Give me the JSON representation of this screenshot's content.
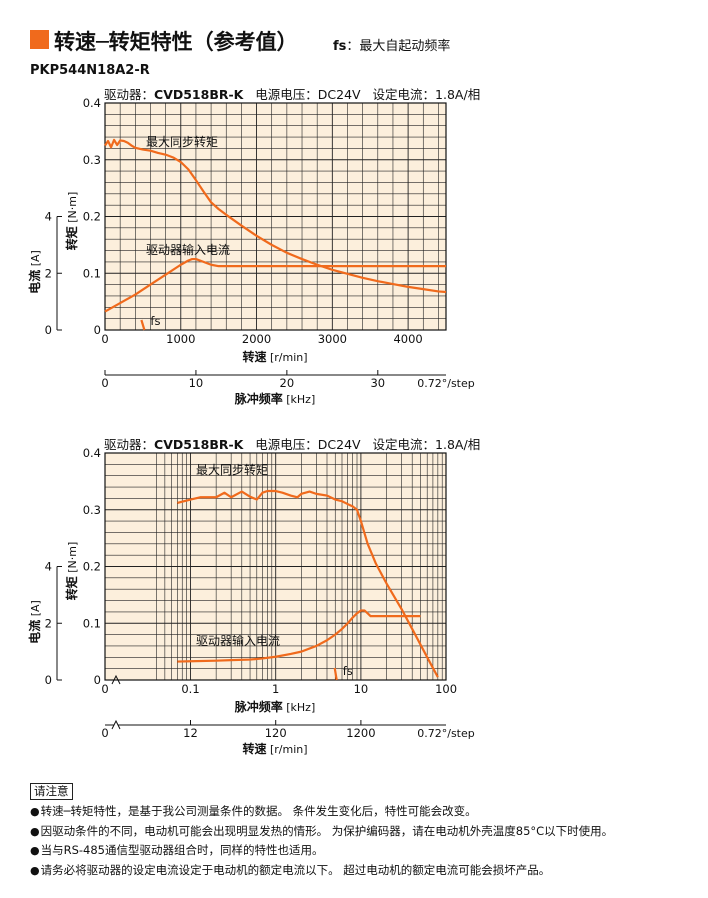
{
  "header": {
    "title": "转速─转矩特性（参考值）",
    "subtitle_fs": "fs",
    "subtitle_rest": "：最大自起动频率",
    "model": "PKP544N18A2-R"
  },
  "colors": {
    "accent": "#f06a1c",
    "curve": "#f06a1c",
    "plot_background": "#fcefdc",
    "grid": "#222222"
  },
  "conditions": {
    "driver_label": "驱动器：",
    "driver_value": "CVD518BR-K",
    "voltage_label": "电源电压：",
    "voltage_value": "DC24V",
    "current_label": "设定电流：",
    "current_value": "1.8A/相"
  },
  "chart_data": [
    {
      "type": "line",
      "x_scale": "linear",
      "xlabel": "转速",
      "xlabel_unit": "[r/min]",
      "xlim": [
        0,
        4500
      ],
      "x_ticks": [
        0,
        1000,
        2000,
        3000,
        4000
      ],
      "x_tick_labels": [
        "0",
        "1000",
        "2000",
        "3000",
        "4000"
      ],
      "ylabel": "转矩",
      "ylabel_unit": "[N·m]",
      "ylim": [
        0,
        0.4
      ],
      "y_ticks": [
        0,
        0.1,
        0.2,
        0.3,
        0.4
      ],
      "y_tick_labels": [
        "0",
        "0.1",
        "0.2",
        "0.3",
        "0.4"
      ],
      "y2label": "电流",
      "y2label_unit": "[A]",
      "y2lim": [
        0,
        8
      ],
      "y2_ticks": [
        0,
        2,
        4
      ],
      "y2_tick_labels": [
        "0",
        "2",
        "4"
      ],
      "secondary_axis": {
        "label": "脉冲频率",
        "unit": "[kHz]",
        "ticks": [
          0,
          10,
          20,
          30
        ],
        "tick_labels": [
          "0",
          "10",
          "20",
          "30"
        ],
        "end_label": "0.72°/step"
      },
      "grid": true,
      "series": [
        {
          "name": "最大同步转矩",
          "x": [
            0,
            40,
            80,
            120,
            160,
            200,
            250,
            300,
            350,
            400,
            500,
            600,
            700,
            800,
            900,
            1000,
            1100,
            1200,
            1300,
            1400,
            1500,
            1600,
            1800,
            2000,
            2200,
            2400,
            2600,
            2800,
            3000,
            3200,
            3400,
            3600,
            3800,
            4000,
            4200,
            4400,
            4500
          ],
          "values": [
            0.325,
            0.333,
            0.322,
            0.335,
            0.326,
            0.334,
            0.333,
            0.33,
            0.325,
            0.321,
            0.318,
            0.316,
            0.312,
            0.309,
            0.304,
            0.296,
            0.283,
            0.264,
            0.244,
            0.225,
            0.213,
            0.203,
            0.184,
            0.166,
            0.15,
            0.136,
            0.125,
            0.115,
            0.106,
            0.099,
            0.092,
            0.086,
            0.081,
            0.076,
            0.072,
            0.068,
            0.067
          ]
        },
        {
          "name": "驱动器输入电流",
          "x": [
            0,
            200,
            400,
            600,
            800,
            1000,
            1100,
            1150,
            1200,
            1300,
            1400,
            1500,
            1600,
            1800,
            2000,
            2500,
            3000,
            3500,
            4000,
            4500
          ],
          "values": [
            0.65,
            0.95,
            1.25,
            1.6,
            1.95,
            2.3,
            2.45,
            2.5,
            2.5,
            2.4,
            2.3,
            2.25,
            2.25,
            2.25,
            2.25,
            2.25,
            2.25,
            2.25,
            2.25,
            2.25
          ]
        }
      ],
      "annotations": [
        {
          "text": "fs",
          "x": 520
        }
      ]
    },
    {
      "type": "line",
      "x_scale": "log",
      "xlabel": "脉冲频率",
      "xlabel_unit": "[kHz]",
      "xlim": [
        0.05,
        100
      ],
      "x_ticks": [
        0.1,
        1,
        10,
        100
      ],
      "x_tick_labels": [
        "0.1",
        "1",
        "10",
        "100"
      ],
      "x_zero_label": "0",
      "ylabel": "转矩",
      "ylabel_unit": "[N·m]",
      "ylim": [
        0,
        0.4
      ],
      "y_ticks": [
        0,
        0.1,
        0.2,
        0.3,
        0.4
      ],
      "y_tick_labels": [
        "0",
        "0.1",
        "0.2",
        "0.3",
        "0.4"
      ],
      "y2label": "电流",
      "y2label_unit": "[A]",
      "y2lim": [
        0,
        8
      ],
      "y2_ticks": [
        0,
        2,
        4
      ],
      "y2_tick_labels": [
        "0",
        "2",
        "4"
      ],
      "secondary_axis": {
        "label": "转速",
        "unit": "[r/min]",
        "ticks": [
          12,
          120,
          1200
        ],
        "tick_labels": [
          "12",
          "120",
          "1200"
        ],
        "zero_label": "0",
        "end_label": "0.72°/step"
      },
      "grid": true,
      "series": [
        {
          "name": "最大同步转矩",
          "x": [
            0.07,
            0.1,
            0.13,
            0.16,
            0.2,
            0.25,
            0.3,
            0.4,
            0.5,
            0.6,
            0.7,
            0.8,
            1.0,
            1.2,
            1.5,
            1.8,
            2.0,
            2.5,
            3.0,
            4.0,
            5.0,
            6.0,
            7.0,
            8.0,
            9.0,
            10.0,
            12.0,
            15.0,
            20.0,
            30.0,
            40.0,
            60.0,
            80.0
          ],
          "values": [
            0.312,
            0.318,
            0.322,
            0.322,
            0.322,
            0.33,
            0.322,
            0.332,
            0.323,
            0.318,
            0.33,
            0.333,
            0.333,
            0.33,
            0.325,
            0.322,
            0.328,
            0.332,
            0.328,
            0.325,
            0.318,
            0.315,
            0.31,
            0.306,
            0.3,
            0.28,
            0.24,
            0.205,
            0.17,
            0.125,
            0.09,
            0.04,
            0.005
          ]
        },
        {
          "name": "驱动器输入电流",
          "x": [
            0.07,
            0.1,
            0.2,
            0.3,
            0.5,
            0.7,
            1.0,
            1.5,
            2.0,
            3.0,
            4.0,
            5.0,
            6.0,
            7.0,
            8.0,
            9.0,
            10.0,
            11.0,
            12.0,
            13.0,
            15.0,
            20.0,
            30.0,
            40.0,
            50.0
          ],
          "values": [
            0.65,
            0.66,
            0.68,
            0.7,
            0.72,
            0.76,
            0.82,
            0.92,
            1.0,
            1.2,
            1.4,
            1.6,
            1.8,
            2.0,
            2.2,
            2.35,
            2.45,
            2.45,
            2.35,
            2.25,
            2.25,
            2.25,
            2.25,
            2.25,
            2.25
          ]
        }
      ],
      "annotations": [
        {
          "text": "fs",
          "x": 5.2
        }
      ]
    }
  ],
  "notes": {
    "title": "请注意",
    "items": [
      "转速─转矩特性，是基于我公司测量条件的数据。 条件发生变化后，特性可能会改变。",
      "因驱动条件的不同，电动机可能会出现明显发热的情形。 为保护编码器，请在电动机外壳温度85°C以下时使用。",
      "当与RS-485通信型驱动器组合时，同样的特性也适用。",
      "请务必将驱动器的设定电流设定于电动机的额定电流以下。 超过电动机的额定电流可能会损坏产品。"
    ]
  }
}
